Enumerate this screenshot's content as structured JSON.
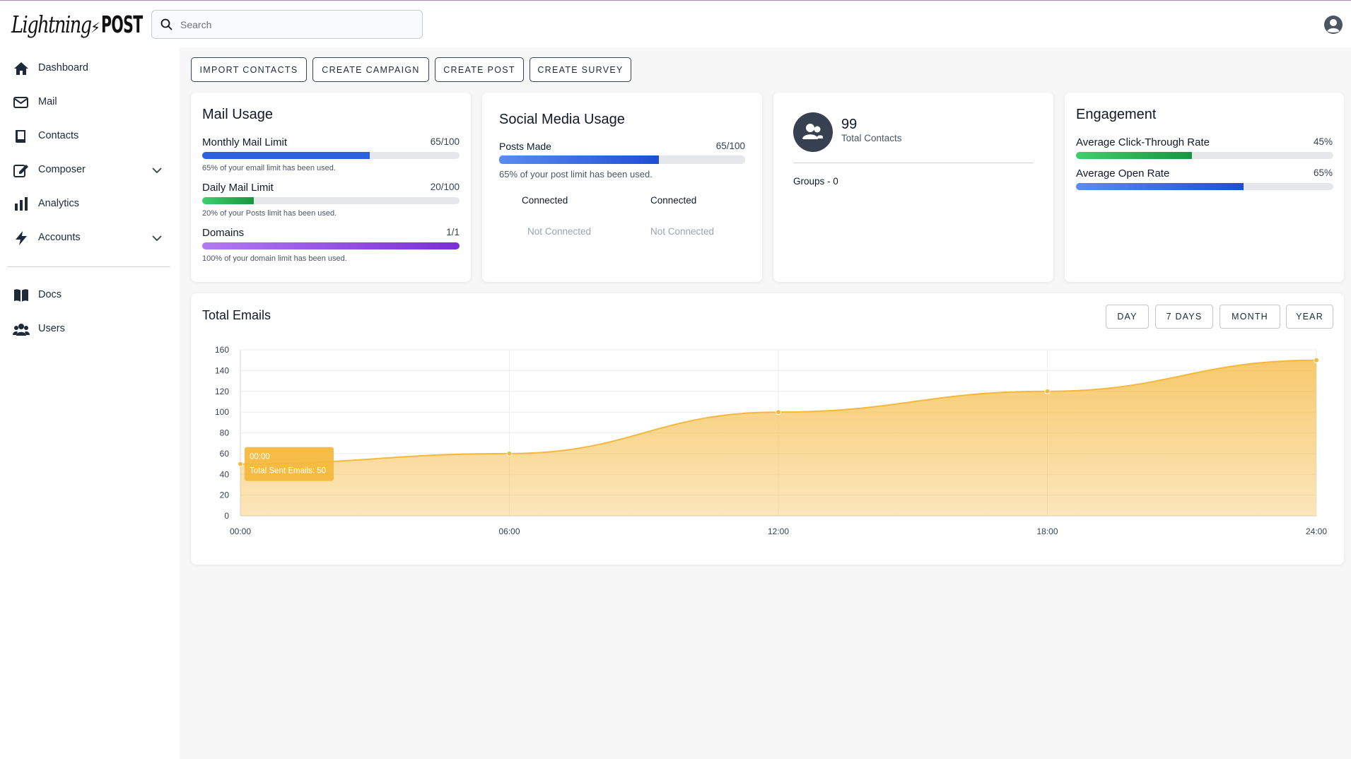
{
  "header": {
    "logo_part1": "Lightning",
    "logo_part2": "POST",
    "search_placeholder": "Search"
  },
  "sidebar": {
    "items": [
      {
        "label": "Dashboard",
        "icon": "home-icon"
      },
      {
        "label": "Mail",
        "icon": "mail-icon"
      },
      {
        "label": "Contacts",
        "icon": "contacts-book-icon"
      },
      {
        "label": "Composer",
        "icon": "edit-icon"
      },
      {
        "label": "Analytics",
        "icon": "bar-chart-icon"
      },
      {
        "label": "Accounts",
        "icon": "lightning-icon"
      },
      {
        "label": "Docs",
        "icon": "book-icon"
      },
      {
        "label": "Users",
        "icon": "users-icon"
      }
    ]
  },
  "actions": [
    "IMPORT CONTACTS",
    "CREATE CAMPAIGN",
    "CREATE POST",
    "CREATE SURVEY"
  ],
  "mail_usage": {
    "title": "Mail Usage",
    "monthly": {
      "label": "Monthly Mail Limit",
      "value": "65/100",
      "fraction": 0.65,
      "note": "65% of your email limit has been used.",
      "color": "#2d61e0"
    },
    "daily": {
      "label": "Daily Mail Limit",
      "value": "20/100",
      "fraction": 0.2,
      "note": "20% of your Posts limit has been used.",
      "color": "#22a447"
    },
    "domains": {
      "label": "Domains",
      "value": "1/1",
      "fraction": 1.0,
      "note": "100% of your domain limit has been used.",
      "color": "#8b3de0"
    }
  },
  "social_usage": {
    "title": "Social Media Usage",
    "posts": {
      "label": "Posts Made",
      "value": "65/100",
      "fraction": 0.65,
      "note": "65% of your post limit has been used."
    },
    "status": [
      "Connected",
      "Connected",
      "Not Connected",
      "Not Connected"
    ]
  },
  "contacts": {
    "count": "99",
    "label": "Total Contacts",
    "groups": "Groups - 0"
  },
  "engagement": {
    "title": "Engagement",
    "ctr": {
      "label": "Average Click-Through Rate",
      "value": "45%",
      "fraction": 0.45
    },
    "open": {
      "label": "Average Open Rate",
      "value": "65%",
      "fraction": 0.65
    }
  },
  "total_emails": {
    "title": "Total Emails",
    "ranges": [
      "DAY",
      "7 DAYS",
      "MONTH",
      "YEAR"
    ],
    "tooltip": {
      "time": "00:00",
      "text": "Total Sent Emails: 50"
    }
  },
  "chart_data": {
    "type": "area",
    "x": [
      "00:00",
      "06:00",
      "12:00",
      "18:00",
      "24:00"
    ],
    "series": [
      {
        "values": [
          50,
          60,
          100,
          120,
          150
        ]
      }
    ],
    "ylim": [
      0,
      160
    ],
    "yticks": [
      0,
      20,
      40,
      60,
      80,
      100,
      120,
      140,
      160
    ],
    "color": "#f5b83d",
    "grid": true
  }
}
